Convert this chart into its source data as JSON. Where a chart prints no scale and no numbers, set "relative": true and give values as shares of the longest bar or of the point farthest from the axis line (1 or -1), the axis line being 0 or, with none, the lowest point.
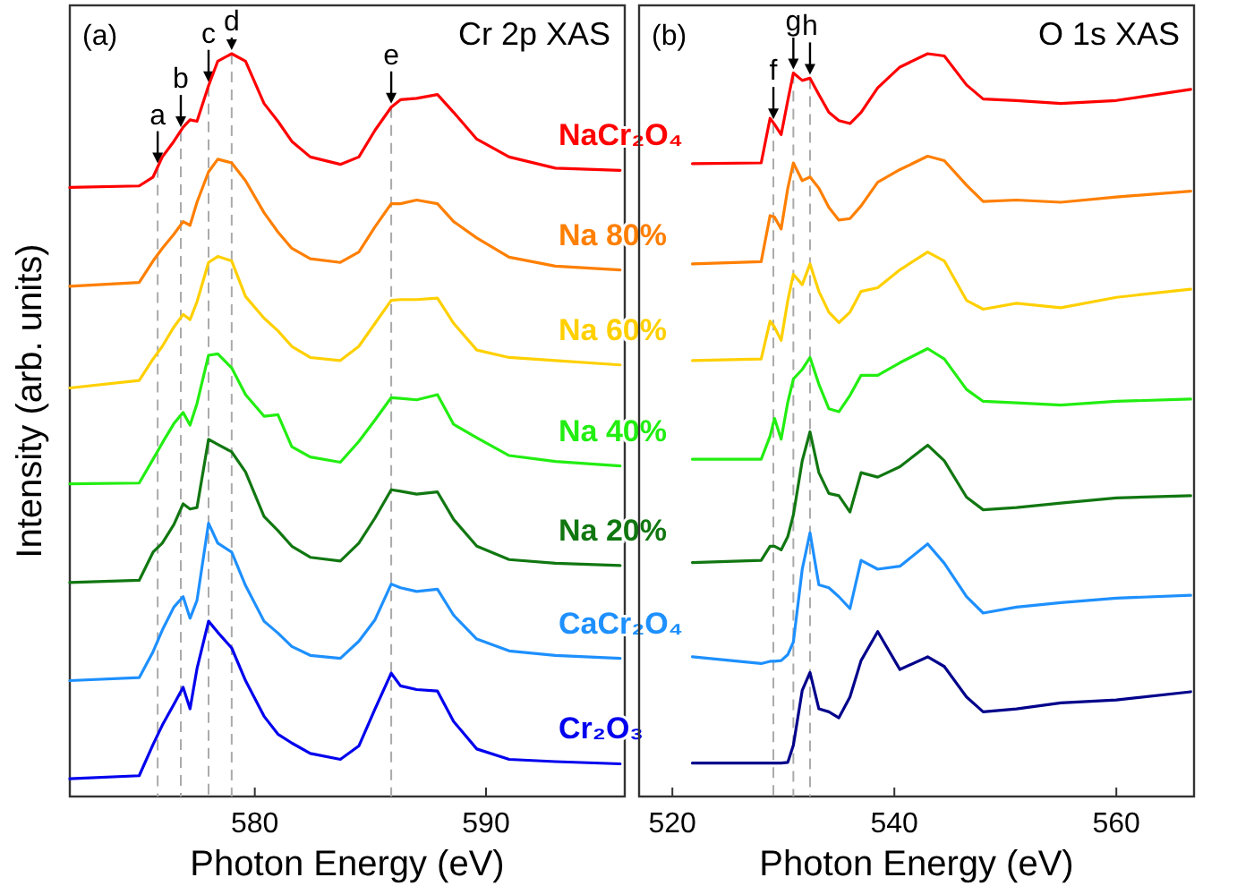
{
  "chart_data": [
    {
      "type": "line",
      "title": "Cr 2p XAS",
      "annotations": [
        "(a)"
      ],
      "xlabel": "Photon Energy (eV)",
      "ylabel": "Intensity (arb. units)",
      "relative": true,
      "marker": "none",
      "line_style": "solid",
      "xlim": [
        572,
        596
      ],
      "xticks": [
        580,
        590
      ],
      "x": [
        572,
        575,
        575.6,
        576,
        576.5,
        576.9,
        577.2,
        577.5,
        578,
        578.4,
        579,
        579.6,
        580.4,
        581,
        581.6,
        582.4,
        583.7,
        584.5,
        585.2,
        585.9,
        586.3,
        587,
        587.9,
        588.6,
        589.6,
        591,
        593,
        595.8
      ],
      "ref_lines": [
        {
          "axis": "x",
          "value": 575.8,
          "label": "a",
          "color": "#aaaaaa",
          "line_style": "dashed"
        },
        {
          "axis": "x",
          "value": 576.8,
          "label": "b",
          "color": "#aaaaaa",
          "line_style": "dashed"
        },
        {
          "axis": "x",
          "value": 578,
          "label": "c",
          "color": "#aaaaaa",
          "line_style": "dashed"
        },
        {
          "axis": "x",
          "value": 579,
          "label": "d",
          "color": "#aaaaaa",
          "line_style": "dashed"
        },
        {
          "axis": "x",
          "value": 585.9,
          "label": "e",
          "color": "#aaaaaa",
          "line_style": "dashed"
        }
      ],
      "series": [
        {
          "name": "NaCr₂O₄",
          "color": "#ff0000",
          "values": [
            0.82,
            0.822,
            0.834,
            0.861,
            0.882,
            0.901,
            0.911,
            0.909,
            0.957,
            0.99,
            1,
            0.99,
            0.933,
            0.909,
            0.882,
            0.861,
            0.851,
            0.861,
            0.897,
            0.928,
            0.938,
            0.94,
            0.945,
            0.921,
            0.885,
            0.861,
            0.846,
            0.843
          ]
        },
        {
          "name": "Na 80%",
          "color": "#ff7f00",
          "values": [
            0.687,
            0.692,
            0.721,
            0.738,
            0.757,
            0.774,
            0.769,
            0.8,
            0.841,
            0.858,
            0.853,
            0.829,
            0.786,
            0.76,
            0.738,
            0.724,
            0.719,
            0.733,
            0.767,
            0.798,
            0.798,
            0.803,
            0.798,
            0.774,
            0.752,
            0.726,
            0.714,
            0.709
          ]
        },
        {
          "name": "Na 60%",
          "color": "#ffd000",
          "values": [
            0.55,
            0.56,
            0.589,
            0.606,
            0.632,
            0.649,
            0.642,
            0.666,
            0.719,
            0.727,
            0.721,
            0.673,
            0.644,
            0.627,
            0.606,
            0.591,
            0.587,
            0.606,
            0.637,
            0.668,
            0.669,
            0.669,
            0.671,
            0.637,
            0.601,
            0.591,
            0.587,
            0.581
          ]
        },
        {
          "name": "Na 40%",
          "color": "#22ee11",
          "values": [
            0.421,
            0.422,
            0.454,
            0.476,
            0.502,
            0.517,
            0.5,
            0.529,
            0.594,
            0.596,
            0.577,
            0.541,
            0.512,
            0.514,
            0.471,
            0.457,
            0.45,
            0.478,
            0.507,
            0.537,
            0.536,
            0.534,
            0.541,
            0.501,
            0.483,
            0.459,
            0.451,
            0.445
          ]
        },
        {
          "name": "Na 20%",
          "color": "#117711",
          "values": [
            0.288,
            0.291,
            0.329,
            0.341,
            0.366,
            0.394,
            0.387,
            0.389,
            0.481,
            0.474,
            0.464,
            0.437,
            0.377,
            0.358,
            0.337,
            0.322,
            0.317,
            0.341,
            0.375,
            0.413,
            0.411,
            0.407,
            0.41,
            0.373,
            0.337,
            0.319,
            0.314,
            0.311
          ]
        },
        {
          "name": "CaCr₂O₄",
          "color": "#1e90ff",
          "values": [
            0.156,
            0.16,
            0.195,
            0.224,
            0.255,
            0.269,
            0.24,
            0.264,
            0.368,
            0.341,
            0.329,
            0.284,
            0.236,
            0.22,
            0.202,
            0.19,
            0.186,
            0.209,
            0.238,
            0.286,
            0.281,
            0.276,
            0.279,
            0.244,
            0.212,
            0.196,
            0.19,
            0.186
          ]
        },
        {
          "name": "Cr₂O₃",
          "color": "#0000ee",
          "values": [
            0.024,
            0.028,
            0.07,
            0.096,
            0.124,
            0.147,
            0.118,
            0.172,
            0.236,
            0.221,
            0.2,
            0.156,
            0.108,
            0.084,
            0.072,
            0.058,
            0.05,
            0.068,
            0.118,
            0.166,
            0.149,
            0.144,
            0.142,
            0.101,
            0.064,
            0.05,
            0.047,
            0.044
          ]
        }
      ]
    },
    {
      "type": "line",
      "title": "O 1s XAS",
      "annotations": [
        "(b)"
      ],
      "xlabel": "Photon Energy (eV)",
      "relative": true,
      "marker": "none",
      "line_style": "solid",
      "xlim": [
        517,
        567
      ],
      "xticks": [
        520,
        540,
        560
      ],
      "x": [
        521.8,
        528,
        528.8,
        529.2,
        529.8,
        530.4,
        530.9,
        531.7,
        532.4,
        533.2,
        534.1,
        535,
        536,
        537,
        538.5,
        540.5,
        543,
        544.5,
        546.5,
        548,
        551,
        555,
        560,
        566.7
      ],
      "ref_lines": [
        {
          "axis": "x",
          "value": 529.1,
          "label": "f",
          "color": "#aaaaaa",
          "line_style": "dashed"
        },
        {
          "axis": "x",
          "value": 530.9,
          "label": "g",
          "color": "#aaaaaa",
          "line_style": "dashed"
        },
        {
          "axis": "x",
          "value": 532.4,
          "label": "h",
          "color": "#aaaaaa",
          "line_style": "dashed"
        }
      ],
      "series": [
        {
          "color": "#ff0000",
          "values": [
            0.852,
            0.853,
            0.913,
            0.905,
            0.891,
            0.937,
            0.974,
            0.964,
            0.967,
            0.945,
            0.921,
            0.91,
            0.906,
            0.921,
            0.954,
            0.982,
            1,
            0.997,
            0.958,
            0.939,
            0.937,
            0.933,
            0.937,
            0.952
          ]
        },
        {
          "color": "#ff7f00",
          "values": [
            0.717,
            0.72,
            0.782,
            0.78,
            0.764,
            0.819,
            0.853,
            0.829,
            0.834,
            0.819,
            0.793,
            0.776,
            0.778,
            0.795,
            0.827,
            0.844,
            0.862,
            0.856,
            0.823,
            0.801,
            0.803,
            0.8,
            0.807,
            0.815
          ]
        },
        {
          "color": "#ffd000",
          "values": [
            0.587,
            0.589,
            0.64,
            0.632,
            0.614,
            0.668,
            0.703,
            0.689,
            0.717,
            0.68,
            0.652,
            0.638,
            0.652,
            0.68,
            0.685,
            0.709,
            0.733,
            0.721,
            0.668,
            0.656,
            0.664,
            0.658,
            0.672,
            0.683
          ]
        },
        {
          "color": "#22ee11",
          "values": [
            0.454,
            0.454,
            0.485,
            0.509,
            0.481,
            0.531,
            0.562,
            0.575,
            0.591,
            0.555,
            0.522,
            0.518,
            0.54,
            0.567,
            0.567,
            0.584,
            0.603,
            0.589,
            0.548,
            0.532,
            0.53,
            0.527,
            0.532,
            0.535
          ]
        },
        {
          "color": "#117711",
          "values": [
            0.315,
            0.318,
            0.337,
            0.337,
            0.332,
            0.35,
            0.379,
            0.452,
            0.491,
            0.436,
            0.408,
            0.405,
            0.383,
            0.436,
            0.43,
            0.444,
            0.473,
            0.452,
            0.403,
            0.386,
            0.389,
            0.395,
            0.402,
            0.405
          ]
        },
        {
          "color": "#1e90ff",
          "values": [
            0.188,
            0.179,
            0.182,
            0.182,
            0.183,
            0.191,
            0.208,
            0.306,
            0.355,
            0.285,
            0.281,
            0.269,
            0.253,
            0.318,
            0.306,
            0.31,
            0.34,
            0.314,
            0.269,
            0.247,
            0.255,
            0.261,
            0.267,
            0.271
          ]
        },
        {
          "color": "#00008b",
          "values": [
            0.045,
            0.045,
            0.045,
            0.045,
            0.045,
            0.046,
            0.069,
            0.143,
            0.167,
            0.118,
            0.114,
            0.106,
            0.134,
            0.183,
            0.222,
            0.171,
            0.188,
            0.175,
            0.134,
            0.114,
            0.118,
            0.126,
            0.13,
            0.141
          ]
        }
      ]
    }
  ]
}
